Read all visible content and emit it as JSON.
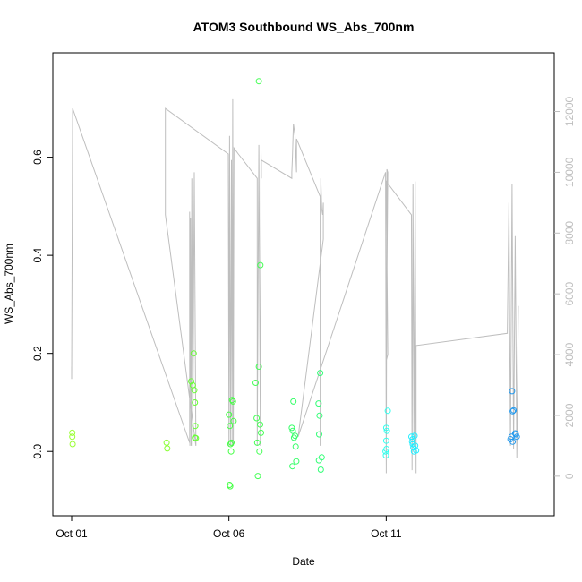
{
  "chart_data": {
    "type": "scatter",
    "title": "ATOM3 Southbound WS_Abs_700nm",
    "xlabel": "Date",
    "ylabel": "WS_Abs_700nm",
    "x_ticks": [
      {
        "day": 1,
        "label": "Oct 01"
      },
      {
        "day": 6,
        "label": "Oct 06"
      },
      {
        "day": 11,
        "label": "Oct 11"
      }
    ],
    "xlim_days": [
      1.0,
      15.8
    ],
    "ylim": [
      -0.1,
      0.78
    ],
    "y_ticks": [
      0.0,
      0.2,
      0.4,
      0.6
    ],
    "y2_ticks": [
      0,
      2000,
      4000,
      6000,
      8000,
      10000,
      12000
    ],
    "y2lim": [
      -800,
      13400
    ],
    "colors": {
      "axis": "#000000",
      "secondary_axis": "#bebebe",
      "altitude_line": "#bebebe"
    },
    "series": [
      {
        "type": "scatter",
        "marker": "open-circle",
        "color_by": "time",
        "points": [
          {
            "day": 1.02,
            "value": 0.038,
            "color": "#99ff33"
          },
          {
            "day": 1.02,
            "value": 0.03,
            "color": "#99ff33"
          },
          {
            "day": 1.03,
            "value": 0.015,
            "color": "#99ff33"
          },
          {
            "day": 4.02,
            "value": 0.018,
            "color": "#88ff33"
          },
          {
            "day": 4.04,
            "value": 0.006,
            "color": "#88ff33"
          },
          {
            "day": 4.8,
            "value": 0.143,
            "color": "#66ff33"
          },
          {
            "day": 4.85,
            "value": 0.135,
            "color": "#66ff33"
          },
          {
            "day": 4.88,
            "value": 0.2,
            "color": "#66ff33"
          },
          {
            "day": 4.9,
            "value": 0.125,
            "color": "#66ff33"
          },
          {
            "day": 4.92,
            "value": 0.1,
            "color": "#66ff33"
          },
          {
            "day": 4.93,
            "value": 0.052,
            "color": "#66ff33"
          },
          {
            "day": 4.92,
            "value": 0.028,
            "color": "#66ff33"
          },
          {
            "day": 4.95,
            "value": 0.027,
            "color": "#66ff33"
          },
          {
            "day": 6.0,
            "value": 0.075,
            "color": "#44ff44"
          },
          {
            "day": 6.03,
            "value": 0.052,
            "color": "#44ff44"
          },
          {
            "day": 6.05,
            "value": 0.015,
            "color": "#44ff44"
          },
          {
            "day": 6.07,
            "value": 0.0,
            "color": "#44ff44"
          },
          {
            "day": 6.08,
            "value": 0.018,
            "color": "#44ff44"
          },
          {
            "day": 6.1,
            "value": 0.105,
            "color": "#44ff44"
          },
          {
            "day": 6.13,
            "value": 0.102,
            "color": "#44ff44"
          },
          {
            "day": 6.15,
            "value": 0.062,
            "color": "#44ff44"
          },
          {
            "day": 6.02,
            "value": -0.068,
            "color": "#44ff44"
          },
          {
            "day": 6.04,
            "value": -0.071,
            "color": "#44ff44"
          },
          {
            "day": 6.85,
            "value": 0.14,
            "color": "#44ff55"
          },
          {
            "day": 6.88,
            "value": 0.068,
            "color": "#44ff55"
          },
          {
            "day": 6.9,
            "value": 0.018,
            "color": "#44ff55"
          },
          {
            "day": 6.92,
            "value": -0.05,
            "color": "#44ff55"
          },
          {
            "day": 6.95,
            "value": 0.173,
            "color": "#44ff55"
          },
          {
            "day": 6.97,
            "value": 0.0,
            "color": "#44ff55"
          },
          {
            "day": 6.99,
            "value": 0.055,
            "color": "#44ff55"
          },
          {
            "day": 7.0,
            "value": 0.38,
            "color": "#44ff55"
          },
          {
            "day": 7.02,
            "value": 0.038,
            "color": "#44ff55"
          },
          {
            "day": 6.95,
            "value": 0.755,
            "color": "#44ff55"
          },
          {
            "day": 8.0,
            "value": 0.048,
            "color": "#33ff66"
          },
          {
            "day": 8.03,
            "value": 0.042,
            "color": "#33ff66"
          },
          {
            "day": 8.05,
            "value": 0.102,
            "color": "#33ff66"
          },
          {
            "day": 8.07,
            "value": 0.028,
            "color": "#33ff66"
          },
          {
            "day": 8.1,
            "value": 0.032,
            "color": "#33ff66"
          },
          {
            "day": 8.12,
            "value": 0.01,
            "color": "#33ff66"
          },
          {
            "day": 8.14,
            "value": -0.02,
            "color": "#33ff66"
          },
          {
            "day": 8.02,
            "value": -0.03,
            "color": "#33ff66"
          },
          {
            "day": 8.85,
            "value": 0.098,
            "color": "#33ff77"
          },
          {
            "day": 8.88,
            "value": 0.073,
            "color": "#33ff77"
          },
          {
            "day": 8.9,
            "value": 0.16,
            "color": "#33ff77"
          },
          {
            "day": 8.87,
            "value": 0.035,
            "color": "#33ff77"
          },
          {
            "day": 8.86,
            "value": -0.018,
            "color": "#33ff77"
          },
          {
            "day": 8.92,
            "value": -0.037,
            "color": "#33ff77"
          },
          {
            "day": 8.95,
            "value": -0.012,
            "color": "#33ff77"
          },
          {
            "day": 11.0,
            "value": 0.048,
            "color": "#33ffee"
          },
          {
            "day": 11.02,
            "value": 0.042,
            "color": "#33ffee"
          },
          {
            "day": 11.05,
            "value": 0.083,
            "color": "#33ffee"
          },
          {
            "day": 11.0,
            "value": 0.022,
            "color": "#33ffee"
          },
          {
            "day": 11.01,
            "value": 0.005,
            "color": "#33ffee"
          },
          {
            "day": 10.99,
            "value": -0.008,
            "color": "#33ffee"
          },
          {
            "day": 10.98,
            "value": 0.0,
            "color": "#33ffee"
          },
          {
            "day": 11.8,
            "value": 0.03,
            "color": "#22eeff"
          },
          {
            "day": 11.82,
            "value": 0.02,
            "color": "#22eeff"
          },
          {
            "day": 11.84,
            "value": 0.015,
            "color": "#22eeff"
          },
          {
            "day": 11.86,
            "value": 0.008,
            "color": "#22eeff"
          },
          {
            "day": 11.88,
            "value": 0.0,
            "color": "#22eeff"
          },
          {
            "day": 11.9,
            "value": 0.032,
            "color": "#22eeff"
          },
          {
            "day": 11.92,
            "value": 0.012,
            "color": "#22eeff"
          },
          {
            "day": 11.95,
            "value": 0.002,
            "color": "#22eeff"
          },
          {
            "day": 11.84,
            "value": 0.025,
            "color": "#22eeff"
          },
          {
            "day": 15.0,
            "value": 0.123,
            "color": "#2299ee"
          },
          {
            "day": 15.02,
            "value": 0.082,
            "color": "#2299ee"
          },
          {
            "day": 15.05,
            "value": 0.084,
            "color": "#2299ee"
          },
          {
            "day": 14.95,
            "value": 0.025,
            "color": "#2299ee"
          },
          {
            "day": 14.98,
            "value": 0.03,
            "color": "#2299ee"
          },
          {
            "day": 15.02,
            "value": 0.02,
            "color": "#2299ee"
          },
          {
            "day": 15.1,
            "value": 0.037,
            "color": "#2299ee"
          },
          {
            "day": 15.12,
            "value": 0.035,
            "color": "#2299ee"
          },
          {
            "day": 15.15,
            "value": 0.03,
            "color": "#2299ee"
          }
        ]
      },
      {
        "type": "line",
        "axis": "secondary",
        "points": [
          [
            1.0,
            3600
          ],
          [
            1.0,
            3200
          ],
          [
            1.03,
            12100
          ],
          [
            4.75,
            1100
          ],
          [
            4.75,
            8700
          ],
          [
            4.76,
            1000
          ],
          [
            4.78,
            8500
          ],
          [
            4.8,
            1000
          ],
          [
            4.82,
            9800
          ],
          [
            4.85,
            1000
          ],
          [
            4.9,
            10000
          ],
          [
            4.95,
            1000
          ],
          [
            3.98,
            8600
          ],
          [
            3.98,
            12100
          ],
          [
            5.98,
            10600
          ],
          [
            6.0,
            1000
          ],
          [
            6.02,
            11200
          ],
          [
            6.05,
            1000
          ],
          [
            6.08,
            10400
          ],
          [
            6.1,
            1000
          ],
          [
            6.12,
            12400
          ],
          [
            6.14,
            1000
          ],
          [
            6.16,
            10800
          ],
          [
            6.3,
            10600
          ],
          [
            6.9,
            9800
          ],
          [
            6.9,
            1000
          ],
          [
            6.95,
            10900
          ],
          [
            7.0,
            1000
          ],
          [
            7.02,
            10700
          ],
          [
            7.03,
            9800
          ],
          [
            7.03,
            10400
          ],
          [
            8.0,
            9800
          ],
          [
            8.0,
            10000
          ],
          [
            8.02,
            10500
          ],
          [
            8.05,
            11600
          ],
          [
            8.1,
            11200
          ],
          [
            8.15,
            10000
          ],
          [
            8.15,
            11100
          ],
          [
            8.9,
            9200
          ],
          [
            8.9,
            1000
          ],
          [
            8.92,
            9800
          ],
          [
            8.95,
            8800
          ],
          [
            8.98,
            8600
          ],
          [
            9.0,
            9000
          ],
          [
            9.0,
            8600
          ],
          [
            9.0,
            7800
          ],
          [
            8.2,
            1300
          ],
          [
            10.98,
            10000
          ],
          [
            11.0,
            100
          ],
          [
            11.02,
            10100
          ],
          [
            11.05,
            10000
          ],
          [
            11.0,
            3800
          ],
          [
            11.05,
            4000
          ],
          [
            11.0,
            9700
          ],
          [
            11.8,
            8600
          ],
          [
            11.82,
            200
          ],
          [
            11.85,
            9600
          ],
          [
            11.88,
            1000
          ],
          [
            11.92,
            9700
          ],
          [
            11.95,
            100
          ],
          [
            11.95,
            4300
          ],
          [
            14.85,
            4700
          ],
          [
            14.9,
            9000
          ],
          [
            14.95,
            1000
          ],
          [
            15.0,
            9600
          ],
          [
            15.05,
            900
          ],
          [
            15.1,
            7900
          ],
          [
            15.15,
            600
          ],
          [
            15.2,
            5600
          ]
        ]
      }
    ]
  }
}
